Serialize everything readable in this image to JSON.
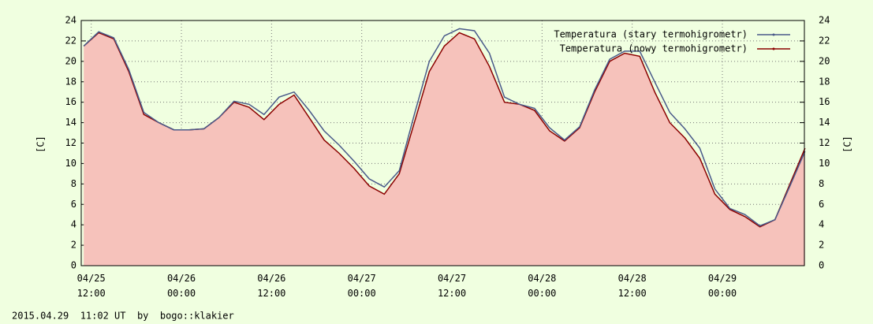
{
  "chart_data": {
    "type": "line",
    "ylabel": "[C]",
    "y2label": "[C]",
    "footer": "2015.04.29  11:02 UT  by  bogo::klakier",
    "x": [
      "04/25 11:00",
      "04/25 13:00",
      "04/25 15:00",
      "04/25 17:00",
      "04/25 19:00",
      "04/25 21:00",
      "04/25 23:00",
      "04/26 01:00",
      "04/26 03:00",
      "04/26 05:00",
      "04/26 07:00",
      "04/26 09:00",
      "04/26 11:00",
      "04/26 13:00",
      "04/26 15:00",
      "04/26 17:00",
      "04/26 19:00",
      "04/26 21:00",
      "04/26 23:00",
      "04/27 01:00",
      "04/27 03:00",
      "04/27 05:00",
      "04/27 07:00",
      "04/27 09:00",
      "04/27 11:00",
      "04/27 13:00",
      "04/27 15:00",
      "04/27 17:00",
      "04/27 19:00",
      "04/27 21:00",
      "04/27 23:00",
      "04/28 01:00",
      "04/28 03:00",
      "04/28 05:00",
      "04/28 07:00",
      "04/28 09:00",
      "04/28 11:00",
      "04/28 13:00",
      "04/28 15:00",
      "04/28 17:00",
      "04/28 19:00",
      "04/28 21:00",
      "04/28 23:00",
      "04/29 01:00",
      "04/29 03:00",
      "04/29 05:00",
      "04/29 07:00",
      "04/29 09:00",
      "04/29 11:00"
    ],
    "series": [
      {
        "name": "Temperatura (stary termohigrometr)",
        "color": "#4a5a8a",
        "values": [
          21.5,
          22.9,
          22.3,
          19.2,
          15.0,
          14.0,
          13.3,
          13.3,
          13.4,
          14.5,
          16.1,
          15.8,
          14.8,
          16.5,
          17.0,
          15.2,
          13.2,
          11.8,
          10.2,
          8.5,
          7.7,
          9.3,
          14.8,
          20.0,
          22.5,
          23.2,
          23.0,
          20.8,
          16.5,
          15.8,
          15.4,
          13.5,
          12.3,
          13.6,
          17.2,
          20.2,
          21.0,
          21.0,
          18.0,
          15.0,
          13.4,
          11.5,
          7.5,
          5.6,
          5.0,
          3.9,
          4.5,
          7.8,
          11.2
        ]
      },
      {
        "name": "Temperatura (nowy termohigrometr)",
        "color": "#8b0000",
        "area": true,
        "area_color": "#f6c2bb",
        "values": [
          21.5,
          22.8,
          22.2,
          19.0,
          14.8,
          14.0,
          13.3,
          13.3,
          13.4,
          14.5,
          16.0,
          15.5,
          14.3,
          15.8,
          16.7,
          14.5,
          12.3,
          11.0,
          9.5,
          7.8,
          7.0,
          9.0,
          14.0,
          19.0,
          21.5,
          22.8,
          22.2,
          19.5,
          16.0,
          15.8,
          15.2,
          13.2,
          12.2,
          13.5,
          17.0,
          20.0,
          20.8,
          20.5,
          17.0,
          14.0,
          12.5,
          10.5,
          7.0,
          5.5,
          4.8,
          3.8,
          4.5,
          8.0,
          11.5
        ]
      }
    ],
    "xlim": [
      "04/25 10:40",
      "04/29 10:55"
    ],
    "xticks": [
      "04/25 12:00",
      "04/26 00:00",
      "04/26 12:00",
      "04/27 00:00",
      "04/27 12:00",
      "04/28 00:00",
      "04/28 12:00",
      "04/29 00:00"
    ],
    "ylim": [
      0,
      24
    ],
    "yticks": [
      0,
      2,
      4,
      6,
      8,
      10,
      12,
      14,
      16,
      18,
      20,
      22,
      24
    ],
    "y2lim": [
      0,
      24
    ],
    "y2ticks": [
      0,
      2,
      4,
      6,
      8,
      10,
      12,
      14,
      16,
      18,
      20,
      22,
      24
    ],
    "grid": true,
    "legend": "top-right"
  }
}
